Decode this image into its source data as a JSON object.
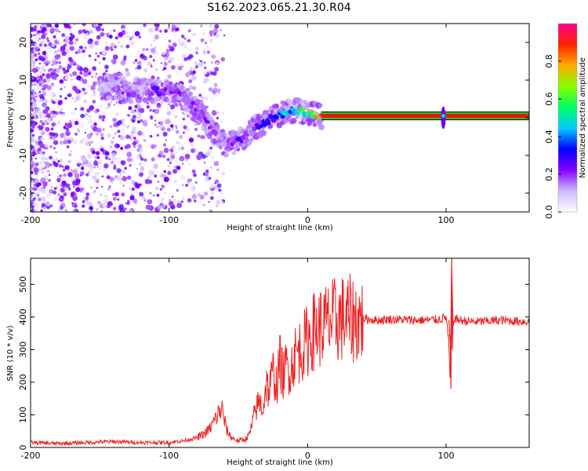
{
  "title": "S162.2023.065.21.30.R04",
  "colors": {
    "snr_line": "#ee2222",
    "track_red": "#ee1111",
    "track_green": "#22cc22",
    "colorbar_stops": [
      "#ffffff",
      "#ccbbff",
      "#8800ff",
      "#0000ff",
      "#00ccff",
      "#00ff66",
      "#88ff00",
      "#ffaa00",
      "#ff2200",
      "#ff0088"
    ]
  },
  "chart_data": [
    {
      "type": "heatmap",
      "title": "",
      "xlabel": "Height of straight line (km)",
      "ylabel": "Frequency (Hz)",
      "xlim": [
        -200,
        160
      ],
      "ylim": [
        -25,
        25
      ],
      "x_ticks": [
        -200,
        -100,
        0,
        100
      ],
      "x_tick_labels": [
        "-200",
        "-100",
        "0",
        "100"
      ],
      "y_ticks": [
        -20,
        -10,
        0,
        10,
        20
      ],
      "y_tick_labels": [
        "-20",
        "-10",
        "0",
        "10",
        "20"
      ],
      "grid": false,
      "colorbar": {
        "label": "Normalized spectral amplitude",
        "range": [
          0,
          1
        ],
        "ticks": [
          0.0,
          0.2,
          0.4,
          0.6,
          0.8
        ],
        "tick_labels": [
          "0.0",
          "0.2",
          "0.4",
          "0.6",
          "0.8"
        ]
      },
      "ridge": {
        "x": [
          -150,
          -140,
          -130,
          -120,
          -110,
          -100,
          -92,
          -85,
          -80,
          -75,
          -70,
          -65,
          -60,
          -55,
          -50,
          -45,
          -40,
          -35,
          -30,
          -25,
          -20,
          -15,
          -10,
          -5,
          0,
          5,
          10,
          160
        ],
        "y": [
          8,
          8,
          7,
          7.5,
          7,
          7,
          6,
          4,
          2,
          0,
          -3,
          -5,
          -7,
          -7,
          -6,
          -5,
          -3,
          -2,
          -1,
          0,
          1,
          1.5,
          2,
          1.5,
          1.5,
          1,
          0.5,
          0.5
        ],
        "amplitude": [
          0.1,
          0.15,
          0.2,
          0.1,
          0.25,
          0.2,
          0.2,
          0.2,
          0.2,
          0.2,
          0.2,
          0.15,
          0.15,
          0.2,
          0.25,
          0.2,
          0.15,
          0.25,
          0.3,
          0.35,
          0.4,
          0.45,
          0.45,
          0.5,
          0.6,
          0.7,
          0.85,
          0.85
        ]
      },
      "steady_track": {
        "x_start": 10,
        "x_end": 160,
        "frequency": 0.5,
        "amplitude": 0.85
      },
      "feature_at_100": {
        "x": 98,
        "y_range": [
          -3,
          3
        ]
      }
    },
    {
      "type": "line",
      "title": "",
      "xlabel": "Height of straight line (km)",
      "ylabel": "SNR (10 * v/v)",
      "xlim": [
        -200,
        160
      ],
      "ylim": [
        0,
        580
      ],
      "x_ticks": [
        -200,
        -100,
        0,
        100
      ],
      "x_tick_labels": [
        "-200",
        "-100",
        "0",
        "100"
      ],
      "y_ticks": [
        0,
        100,
        200,
        300,
        400,
        500
      ],
      "y_tick_labels": [
        "0",
        "100",
        "200",
        "300",
        "400",
        "500"
      ],
      "grid": false,
      "series": [
        {
          "x": [
            -200,
            -180,
            -160,
            -140,
            -120,
            -100,
            -90,
            -80,
            -75,
            -70,
            -65,
            -62,
            -60,
            -58,
            -55,
            -50,
            -45,
            -42,
            -40,
            -38,
            -35,
            -32,
            -30,
            -28,
            -25,
            -22,
            -20,
            -18,
            -15,
            -12,
            -10,
            -5,
            0,
            5,
            10,
            15,
            20,
            25,
            30,
            35,
            40,
            50,
            60,
            80,
            95,
            100,
            102,
            103,
            104,
            105,
            106,
            110,
            120,
            140,
            160
          ],
          "y": [
            15,
            12,
            15,
            18,
            15,
            15,
            20,
            30,
            40,
            60,
            100,
            120,
            80,
            50,
            30,
            20,
            25,
            40,
            70,
            110,
            140,
            120,
            200,
            170,
            230,
            190,
            270,
            220,
            250,
            240,
            280,
            300,
            330,
            360,
            370,
            380,
            390,
            395,
            395,
            390,
            395,
            390,
            393,
            390,
            392,
            400,
            320,
            180,
            580,
            370,
            395,
            390,
            385,
            390,
            385
          ]
        }
      ]
    }
  ]
}
